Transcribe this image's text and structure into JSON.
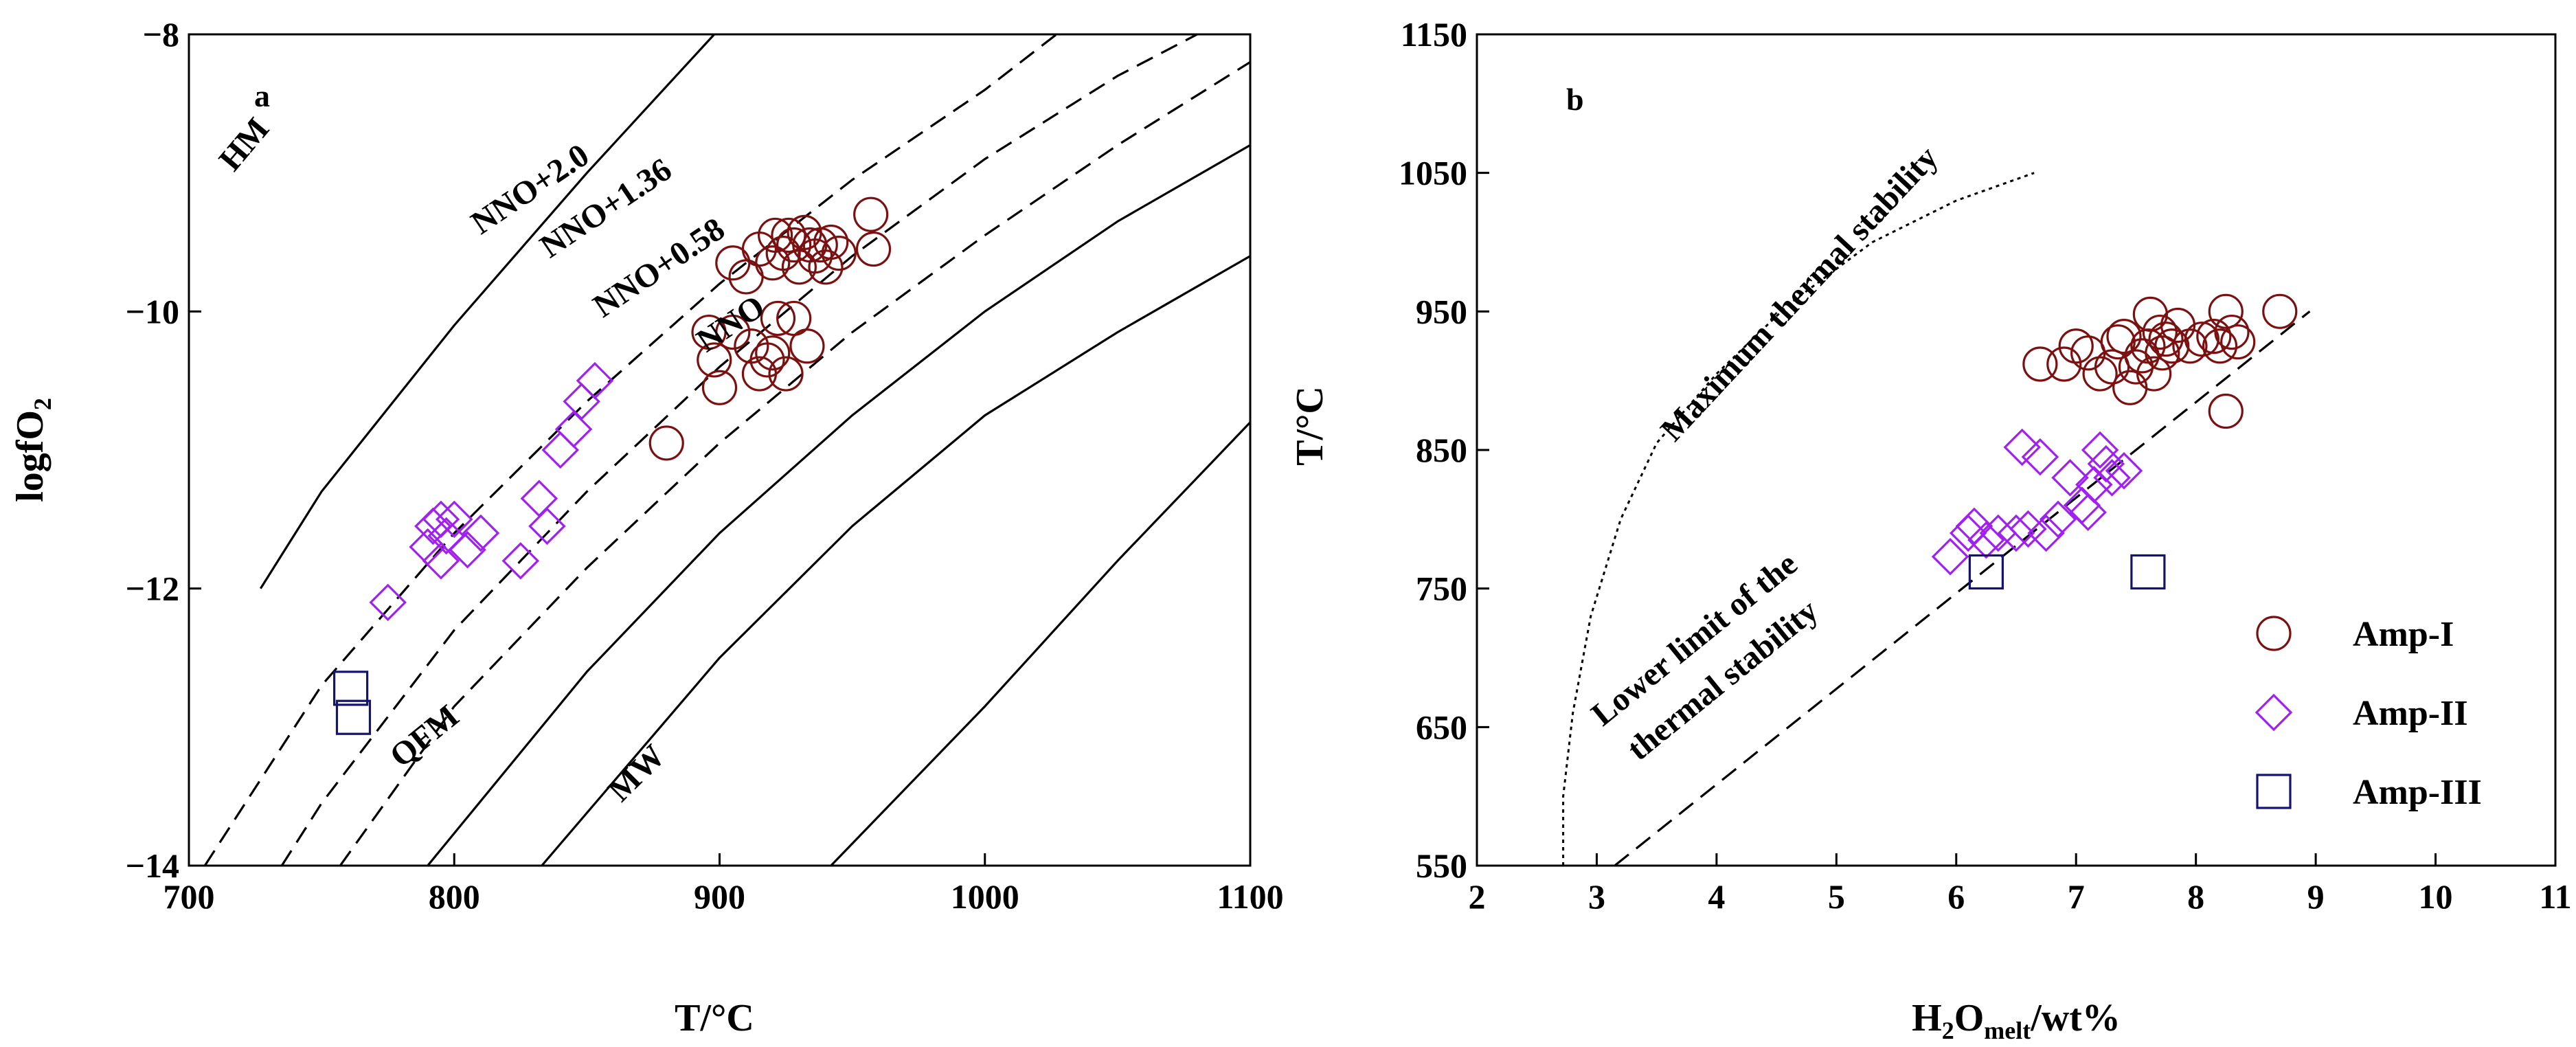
{
  "chart_data": [
    {
      "panel": "a",
      "type": "scatter",
      "xlabel": "T/°C",
      "ylabel_main": "logfO",
      "ylabel_sub": "2",
      "xlim": [
        700,
        1100
      ],
      "ylim": [
        -14,
        -8
      ],
      "xticks": [
        700,
        800,
        900,
        1000,
        1100
      ],
      "yticks": [
        -8,
        -10,
        -12,
        -14
      ],
      "xtick_labels": [
        "700",
        "800",
        "900",
        "1000",
        "1100"
      ],
      "ytick_labels": [
        "−8",
        "−10",
        "−12",
        "−14"
      ],
      "buffers": [
        {
          "name": "HM",
          "label": "HM",
          "style": "solid",
          "label_at": [
            717,
            -9.0
          ],
          "label_rotation": -50,
          "points": [
            [
              727,
              -12
            ],
            [
              750,
              -11.3
            ],
            [
              800,
              -10.1
            ],
            [
              850,
              -9.0
            ],
            [
              898,
              -8
            ]
          ]
        },
        {
          "name": "NNO+2.0",
          "label": "NNO+2.0",
          "style": "dashed",
          "label_at": [
            810,
            -9.45
          ],
          "label_rotation": -34,
          "points": [
            [
              706,
              -14
            ],
            [
              750,
              -12.7
            ],
            [
              800,
              -11.6
            ],
            [
              850,
              -10.65
            ],
            [
              900,
              -9.8
            ],
            [
              950,
              -9.05
            ],
            [
              1000,
              -8.4
            ],
            [
              1027,
              -8
            ]
          ]
        },
        {
          "name": "NNO+1.36",
          "label": "NNO+1.36",
          "style": "dashed",
          "label_at": [
            836,
            -9.62
          ],
          "label_rotation": -34,
          "points": [
            [
              735,
              -14
            ],
            [
              750,
              -13.55
            ],
            [
              800,
              -12.3
            ],
            [
              850,
              -11.3
            ],
            [
              900,
              -10.4
            ],
            [
              950,
              -9.6
            ],
            [
              1000,
              -8.9
            ],
            [
              1050,
              -8.3
            ],
            [
              1080,
              -8
            ]
          ]
        },
        {
          "name": "NNO+0.58",
          "label": "NNO+0.58",
          "style": "dashed",
          "label_at": [
            856,
            -10.05
          ],
          "label_rotation": -34,
          "points": [
            [
              757,
              -14
            ],
            [
              800,
              -12.85
            ],
            [
              850,
              -11.85
            ],
            [
              900,
              -10.95
            ],
            [
              950,
              -10.15
            ],
            [
              1000,
              -9.45
            ],
            [
              1050,
              -8.8
            ],
            [
              1100,
              -8.2
            ]
          ]
        },
        {
          "name": "NNO",
          "label": "NNO",
          "style": "solid",
          "label_at": [
            895,
            -10.3
          ],
          "label_rotation": -34,
          "points": [
            [
              790,
              -14
            ],
            [
              850,
              -12.6
            ],
            [
              900,
              -11.6
            ],
            [
              950,
              -10.75
            ],
            [
              1000,
              -10
            ],
            [
              1050,
              -9.35
            ],
            [
              1100,
              -8.8
            ]
          ]
        },
        {
          "name": "QFM",
          "label": "QFM",
          "style": "solid",
          "label_at": [
            780,
            -13.3
          ],
          "label_rotation": -39,
          "points": [
            [
              833,
              -14
            ],
            [
              900,
              -12.5
            ],
            [
              950,
              -11.55
            ],
            [
              1000,
              -10.75
            ],
            [
              1050,
              -10.15
            ],
            [
              1100,
              -9.6
            ]
          ]
        },
        {
          "name": "MW",
          "label": "MW",
          "style": "solid",
          "label_at": [
            863,
            -13.55
          ],
          "label_rotation": -45,
          "points": [
            [
              942,
              -14
            ],
            [
              1000,
              -12.85
            ],
            [
              1050,
              -11.8
            ],
            [
              1100,
              -10.8
            ]
          ]
        }
      ],
      "series": [
        {
          "name": "Amp-I",
          "marker": "circle",
          "color": "#7B1010",
          "points": [
            [
              880,
              -10.95
            ],
            [
              900,
              -10.55
            ],
            [
              898,
              -10.35
            ],
            [
              896,
              -10.15
            ],
            [
              905,
              -10.15
            ],
            [
              912,
              -10.25
            ],
            [
              915,
              -10.45
            ],
            [
              918,
              -10.35
            ],
            [
              920,
              -10.3
            ],
            [
              922,
              -10.05
            ],
            [
              925,
              -10.45
            ],
            [
              928,
              -10.05
            ],
            [
              933,
              -10.25
            ],
            [
              905,
              -9.65
            ],
            [
              910,
              -9.75
            ],
            [
              915,
              -9.55
            ],
            [
              920,
              -9.65
            ],
            [
              921,
              -9.45
            ],
            [
              924,
              -9.58
            ],
            [
              926,
              -9.45
            ],
            [
              928,
              -9.52
            ],
            [
              930,
              -9.68
            ],
            [
              932,
              -9.43
            ],
            [
              934,
              -9.52
            ],
            [
              936,
              -9.6
            ],
            [
              938,
              -9.52
            ],
            [
              940,
              -9.68
            ],
            [
              942,
              -9.5
            ],
            [
              945,
              -9.58
            ],
            [
              957,
              -9.3
            ],
            [
              958,
              -9.55
            ]
          ]
        },
        {
          "name": "Amp-II",
          "marker": "diamond",
          "color": "#A020F0",
          "points": [
            [
              775,
              -12.1
            ],
            [
              790,
              -11.7
            ],
            [
              792,
              -11.55
            ],
            [
              795,
              -11.5
            ],
            [
              797,
              -11.62
            ],
            [
              800,
              -11.5
            ],
            [
              795,
              -11.8
            ],
            [
              805,
              -11.72
            ],
            [
              810,
              -11.6
            ],
            [
              825,
              -11.8
            ],
            [
              832,
              -11.35
            ],
            [
              835,
              -11.55
            ],
            [
              840,
              -11.0
            ],
            [
              845,
              -10.85
            ],
            [
              848,
              -10.65
            ],
            [
              853,
              -10.5
            ]
          ]
        },
        {
          "name": "Amp-III",
          "marker": "square",
          "color": "#14146E",
          "points": [
            [
              761,
              -12.72
            ],
            [
              762,
              -12.93
            ]
          ]
        }
      ]
    },
    {
      "panel": "b",
      "type": "scatter",
      "xlabel_main": "H",
      "xlabel_sub1": "2",
      "xlabel_mid": "O",
      "xlabel_sub2": "melt",
      "xlabel_tail": "/wt%",
      "ylabel": "T/°C",
      "xlim": [
        2,
        11
      ],
      "ylim": [
        550,
        1150
      ],
      "xticks": [
        2,
        3,
        4,
        5,
        6,
        7,
        8,
        9,
        10,
        11
      ],
      "yticks": [
        550,
        650,
        750,
        850,
        950,
        1050,
        1150
      ],
      "xtick_labels": [
        "2",
        "3",
        "4",
        "5",
        "6",
        "7",
        "8",
        "9",
        "10",
        "11"
      ],
      "ytick_labels": [
        "550",
        "650",
        "750",
        "850",
        "950",
        "1050",
        "1150"
      ],
      "curves": [
        {
          "name": "maximum-thermal-stability",
          "label": "Maximum thermal stability",
          "style": "dotted",
          "label_at": [
            3.65,
            855
          ],
          "label_rotation": -47,
          "points": [
            [
              2.72,
              550
            ],
            [
              2.72,
              600
            ],
            [
              2.8,
              660
            ],
            [
              2.95,
              730
            ],
            [
              3.2,
              800
            ],
            [
              3.5,
              855
            ],
            [
              4.0,
              905
            ],
            [
              4.6,
              955
            ],
            [
              5.3,
              1000
            ],
            [
              6.0,
              1030
            ],
            [
              6.65,
              1050
            ]
          ]
        },
        {
          "name": "lower-limit-thermal-stability",
          "label1": "Lower limit of the",
          "label2": "thermal stability",
          "style": "dashed",
          "label1_at": [
            3.05,
            650
          ],
          "label2_at": [
            3.35,
            625
          ],
          "label_rotation": -39,
          "points": [
            [
              3.15,
              550
            ],
            [
              8.95,
              950
            ]
          ]
        }
      ],
      "series": [
        {
          "name": "Amp-I",
          "marker": "circle",
          "color": "#7B1010",
          "points": [
            [
              6.7,
              912
            ],
            [
              6.9,
              912
            ],
            [
              7.0,
              925
            ],
            [
              7.1,
              920
            ],
            [
              7.2,
              905
            ],
            [
              7.3,
              910
            ],
            [
              7.35,
              928
            ],
            [
              7.4,
              932
            ],
            [
              7.45,
              895
            ],
            [
              7.5,
              910
            ],
            [
              7.55,
              918
            ],
            [
              7.6,
              925
            ],
            [
              7.62,
              948
            ],
            [
              7.65,
              905
            ],
            [
              7.7,
              935
            ],
            [
              7.72,
              920
            ],
            [
              7.75,
              930
            ],
            [
              7.8,
              925
            ],
            [
              7.85,
              940
            ],
            [
              7.95,
              925
            ],
            [
              8.05,
              930
            ],
            [
              8.15,
              932
            ],
            [
              8.2,
              925
            ],
            [
              8.25,
              950
            ],
            [
              8.3,
              935
            ],
            [
              8.35,
              928
            ],
            [
              8.25,
              878
            ],
            [
              8.7,
              950
            ]
          ]
        },
        {
          "name": "Amp-II",
          "marker": "diamond",
          "color": "#A020F0",
          "points": [
            [
              5.95,
              773
            ],
            [
              6.1,
              790
            ],
            [
              6.15,
              795
            ],
            [
              6.25,
              785
            ],
            [
              6.35,
              790
            ],
            [
              6.5,
              790
            ],
            [
              6.55,
              852
            ],
            [
              6.6,
              793
            ],
            [
              6.7,
              845
            ],
            [
              6.75,
              790
            ],
            [
              6.85,
              800
            ],
            [
              6.95,
              830
            ],
            [
              7.05,
              810
            ],
            [
              7.1,
              805
            ],
            [
              7.15,
              825
            ],
            [
              7.2,
              850
            ],
            [
              7.25,
              840
            ],
            [
              7.3,
              830
            ],
            [
              7.4,
              835
            ]
          ]
        },
        {
          "name": "Amp-III",
          "marker": "square",
          "color": "#14146E",
          "points": [
            [
              6.25,
              762
            ],
            [
              7.6,
              762
            ]
          ]
        }
      ],
      "legend": {
        "position": "bottom-right",
        "entries": [
          {
            "label": "Amp-I",
            "marker": "circle",
            "color": "#7B1010"
          },
          {
            "label": "Amp-II",
            "marker": "diamond",
            "color": "#A020F0"
          },
          {
            "label": "Amp-III",
            "marker": "square",
            "color": "#14146E"
          }
        ]
      }
    }
  ]
}
